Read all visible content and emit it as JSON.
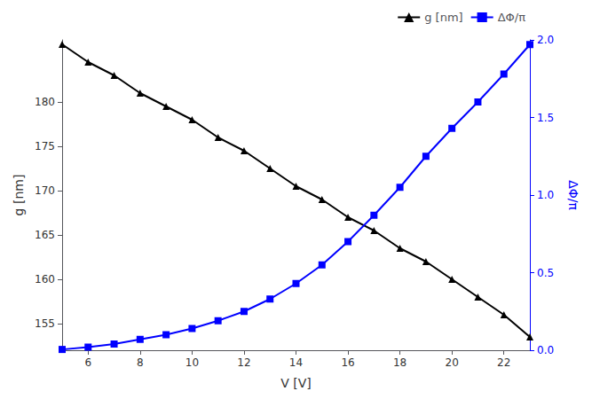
{
  "chart_data": {
    "type": "line",
    "xlabel": "V [V]",
    "ylabel": "g [nm]",
    "y2label": "ΔΦ/π",
    "x": [
      5,
      6,
      7,
      8,
      9,
      10,
      11,
      12,
      13,
      14,
      15,
      16,
      17,
      18,
      19,
      20,
      21,
      22,
      23
    ],
    "xlim": [
      5,
      23
    ],
    "xticks": [
      6,
      8,
      10,
      12,
      14,
      16,
      18,
      20,
      22
    ],
    "ylim": [
      152,
      187
    ],
    "yticks": [
      155,
      160,
      165,
      170,
      175,
      180
    ],
    "y2lim": [
      0.0,
      2.0
    ],
    "y2ticks": [
      {
        "value": 0.0,
        "label": "0.0"
      },
      0.5,
      {
        "value": 1.0,
        "label": "1.0"
      },
      1.5,
      {
        "value": 2.0,
        "label": "2.0"
      }
    ],
    "series": [
      {
        "name": "g [nm]",
        "color": "black",
        "marker": "triangle",
        "values": [
          186.5,
          184.5,
          183.0,
          181.0,
          179.5,
          178.0,
          176.0,
          174.5,
          172.5,
          170.5,
          169.0,
          167.0,
          165.5,
          163.5,
          162.0,
          160.0,
          158.0,
          156.0,
          153.5
        ]
      },
      {
        "name": "ΔΦ/π",
        "color": "#0000ff",
        "marker": "square",
        "axis": "y2",
        "values": [
          0.005,
          0.02,
          0.04,
          0.07,
          0.1,
          0.14,
          0.19,
          0.25,
          0.33,
          0.43,
          0.55,
          0.7,
          0.87,
          1.05,
          1.25,
          1.43,
          1.6,
          1.78,
          1.97
        ]
      }
    ],
    "legend": "upper right",
    "grid": false
  }
}
